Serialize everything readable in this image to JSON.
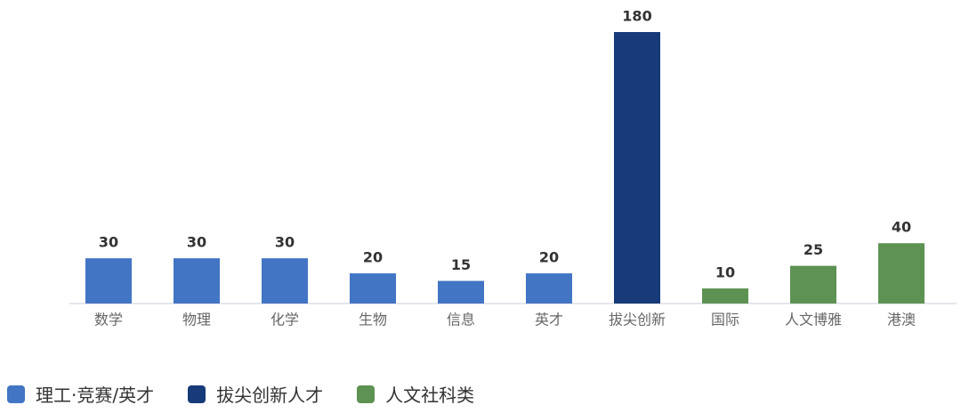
{
  "chart_data": {
    "type": "bar",
    "categories": [
      "数学",
      "物理",
      "化学",
      "生物",
      "信息",
      "英才",
      "拔尖创新",
      "国际",
      "人文博雅",
      "港澳"
    ],
    "series": [
      {
        "name": "理工·竞赛/英才",
        "color": "#4275c4",
        "values": [
          30,
          30,
          30,
          20,
          15,
          20,
          null,
          null,
          null,
          null
        ]
      },
      {
        "name": "拔尖创新人才",
        "color": "#173a78",
        "values": [
          null,
          null,
          null,
          null,
          null,
          null,
          180,
          null,
          null,
          null
        ]
      },
      {
        "name": "人文社科类",
        "color": "#5e9253",
        "values": [
          null,
          null,
          null,
          null,
          null,
          null,
          null,
          10,
          25,
          40
        ]
      }
    ],
    "ylim": [
      0,
      180
    ]
  }
}
